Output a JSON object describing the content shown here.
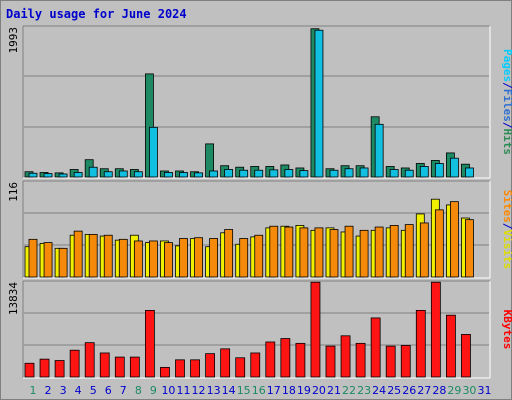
{
  "chart_data": [
    {
      "type": "bar",
      "title": "Daily usage for June 2024",
      "ymax": 1993,
      "ymax_label": "1993",
      "legend": [
        {
          "label": "Pages",
          "color": "#00ccff"
        },
        {
          "label": "/",
          "color": "#0000cc"
        },
        {
          "label": "Files",
          "color": "#2e6fcf"
        },
        {
          "label": "/",
          "color": "#0000cc"
        },
        {
          "label": "Hits",
          "color": "#2e8b57"
        }
      ],
      "categories": [
        "1",
        "2",
        "3",
        "4",
        "5",
        "6",
        "7",
        "8",
        "9",
        "10",
        "11",
        "12",
        "13",
        "14",
        "15",
        "16",
        "17",
        "18",
        "19",
        "20",
        "21",
        "22",
        "23",
        "24",
        "25",
        "26",
        "27",
        "28",
        "29",
        "30",
        "31"
      ],
      "series": [
        {
          "name": "Hits",
          "color": "#1d8a63",
          "values": [
            70,
            60,
            55,
            100,
            230,
            110,
            110,
            100,
            1370,
            80,
            80,
            70,
            440,
            150,
            130,
            140,
            140,
            160,
            120,
            1970,
            110,
            150,
            150,
            800,
            140,
            120,
            180,
            220,
            320,
            170,
            0
          ]
        },
        {
          "name": "Files",
          "color": "#11bfe0",
          "values": [
            50,
            45,
            40,
            60,
            130,
            70,
            80,
            70,
            660,
            60,
            60,
            55,
            80,
            100,
            90,
            90,
            95,
            100,
            85,
            1950,
            90,
            110,
            120,
            700,
            100,
            90,
            140,
            180,
            250,
            120,
            0
          ]
        }
      ]
    },
    {
      "type": "bar",
      "ymax": 116,
      "ymax_label": "116",
      "legend": [
        {
          "label": "Sites",
          "color": "#ff8800"
        },
        {
          "label": "/",
          "color": "#0000cc"
        },
        {
          "label": "Visits",
          "color": "#dddd00"
        }
      ],
      "categories": [
        "1",
        "2",
        "3",
        "4",
        "5",
        "6",
        "7",
        "8",
        "9",
        "10",
        "11",
        "12",
        "13",
        "14",
        "15",
        "16",
        "17",
        "18",
        "19",
        "20",
        "21",
        "22",
        "23",
        "24",
        "25",
        "26",
        "27",
        "28",
        "29",
        "30",
        "31"
      ],
      "series": [
        {
          "name": "Visits",
          "color": "#f0f000",
          "values": [
            37,
            41,
            35,
            51,
            52,
            50,
            45,
            51,
            42,
            44,
            38,
            47,
            37,
            54,
            40,
            49,
            60,
            62,
            63,
            57,
            60,
            55,
            50,
            57,
            60,
            57,
            77,
            95,
            88,
            72,
            0
          ]
        },
        {
          "name": "Sites",
          "color": "#f58a0a",
          "values": [
            46,
            42,
            35,
            56,
            52,
            51,
            46,
            44,
            44,
            42,
            47,
            48,
            47,
            58,
            47,
            51,
            62,
            61,
            60,
            60,
            58,
            62,
            57,
            61,
            63,
            64,
            66,
            82,
            92,
            70,
            0
          ]
        }
      ]
    },
    {
      "type": "bar",
      "ymax": 13834,
      "ymax_label": "13834",
      "legend": [
        {
          "label": "KBytes",
          "color": "#ff0000"
        }
      ],
      "categories": [
        "1",
        "2",
        "3",
        "4",
        "5",
        "6",
        "7",
        "8",
        "9",
        "10",
        "11",
        "12",
        "13",
        "14",
        "15",
        "16",
        "17",
        "18",
        "19",
        "20",
        "21",
        "22",
        "23",
        "24",
        "25",
        "26",
        "27",
        "28",
        "29",
        "30",
        "31"
      ],
      "series": [
        {
          "name": "KBytes",
          "color": "#ff1414",
          "values": [
            2000,
            2600,
            2400,
            3900,
            5000,
            3500,
            2900,
            2900,
            9700,
            1400,
            2500,
            2500,
            3400,
            4100,
            2800,
            3500,
            5100,
            5600,
            4900,
            13800,
            4500,
            6000,
            4900,
            8600,
            4500,
            4600,
            9700,
            13800,
            9000,
            6200,
            0
          ]
        }
      ]
    }
  ],
  "day_label_colors": [
    "#1d8a63",
    "#0000cc",
    "#0000cc",
    "#0000cc",
    "#0000cc",
    "#0000cc",
    "#0000cc",
    "#1d8a63",
    "#1d8a63",
    "#0000cc",
    "#0000cc",
    "#0000cc",
    "#0000cc",
    "#0000cc",
    "#1d8a63",
    "#1d8a63",
    "#0000cc",
    "#0000cc",
    "#0000cc",
    "#0000cc",
    "#0000cc",
    "#1d8a63",
    "#1d8a63",
    "#0000cc",
    "#0000cc",
    "#0000cc",
    "#0000cc",
    "#0000cc",
    "#1d8a63",
    "#1d8a63",
    "#0000cc"
  ]
}
